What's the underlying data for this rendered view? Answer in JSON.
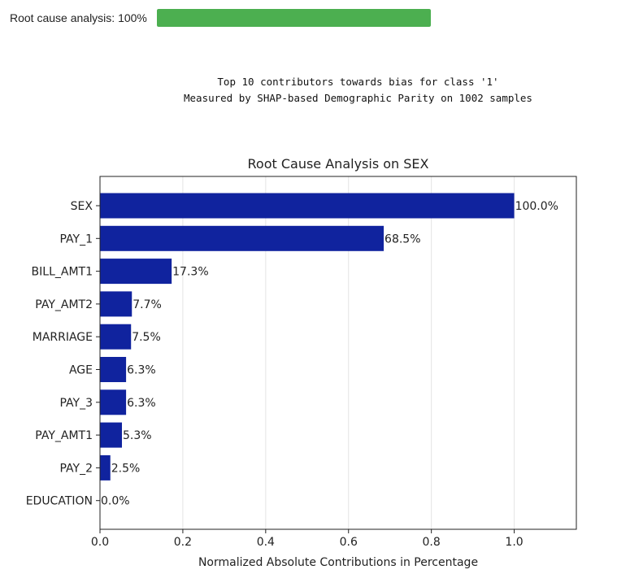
{
  "progress": {
    "label": "Root cause analysis: 100%",
    "fraction": 1.0,
    "color": "#4caf50"
  },
  "output": {
    "line1": "Top 10 contributors towards bias for class '1'",
    "line2": "Measured by SHAP-based Demographic Parity on 1002 samples"
  },
  "chart_data": {
    "type": "bar",
    "orientation": "horizontal",
    "title": "Root Cause Analysis on SEX",
    "xlabel": "Normalized Absolute Contributions in Percentage",
    "ylabel": "",
    "xlim": [
      0,
      1.15
    ],
    "xticks": [
      0.0,
      0.2,
      0.4,
      0.6,
      0.8,
      1.0
    ],
    "xtick_labels": [
      "0.0",
      "0.2",
      "0.4",
      "0.6",
      "0.8",
      "1.0"
    ],
    "grid": "vertical",
    "bar_color": "#10239e",
    "categories": [
      "SEX",
      "PAY_1",
      "BILL_AMT1",
      "PAY_AMT2",
      "MARRIAGE",
      "AGE",
      "PAY_3",
      "PAY_AMT1",
      "PAY_2",
      "EDUCATION"
    ],
    "values": [
      1.0,
      0.685,
      0.173,
      0.077,
      0.075,
      0.063,
      0.063,
      0.053,
      0.025,
      0.0
    ],
    "data_labels": [
      "100.0%",
      "68.5%",
      "17.3%",
      "7.7%",
      "7.5%",
      "6.3%",
      "6.3%",
      "5.3%",
      "2.5%",
      "0.0%"
    ]
  }
}
